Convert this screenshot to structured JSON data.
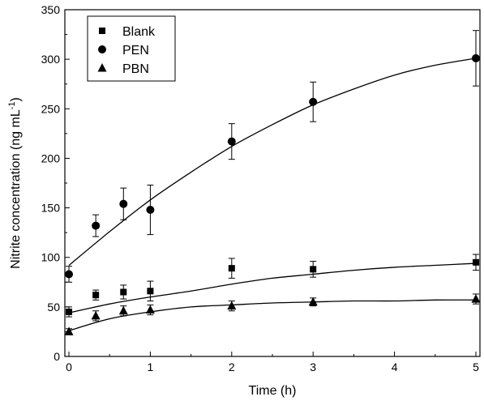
{
  "chart_data": {
    "type": "scatter",
    "title": "",
    "xlabel": "Time (h)",
    "ylabel_main": "Nitrite concentration (ng mL",
    "ylabel_sup": "-1",
    "ylabel_close": ")",
    "xlim": [
      -0.05,
      5.05
    ],
    "ylim": [
      0,
      350
    ],
    "xticks": [
      0,
      1,
      2,
      3,
      4,
      5
    ],
    "xtick_labels": [
      "0",
      "1",
      "2",
      "3",
      "4",
      "5"
    ],
    "yticks": [
      0,
      50,
      100,
      150,
      200,
      250,
      300,
      350
    ],
    "ytick_labels": [
      "0",
      "50",
      "100",
      "150",
      "200",
      "250",
      "300",
      "350"
    ],
    "grid": false,
    "legend_position": "top-left",
    "series": [
      {
        "name": "Blank",
        "marker": "square",
        "x": [
          0,
          0.33,
          0.67,
          1,
          2,
          3,
          5
        ],
        "y": [
          45,
          62,
          65,
          66,
          89,
          88,
          95
        ],
        "err": [
          5,
          5,
          7,
          10,
          10,
          8,
          8
        ],
        "fit": [
          44,
          53,
          60,
          66,
          73,
          79,
          83,
          87,
          90,
          92,
          94
        ]
      },
      {
        "name": "PEN",
        "marker": "circle",
        "x": [
          0,
          0.33,
          0.67,
          1,
          2,
          3,
          5
        ],
        "y": [
          83,
          132,
          154,
          148,
          217,
          257,
          301
        ],
        "err": [
          8,
          11,
          16,
          25,
          18,
          20,
          28
        ],
        "fit": [
          92,
          126,
          158,
          186,
          212,
          234,
          254,
          270,
          284,
          294,
          301
        ]
      },
      {
        "name": "PBN",
        "marker": "triangle",
        "x": [
          0,
          0.33,
          0.67,
          1,
          2,
          3,
          5
        ],
        "y": [
          25,
          41,
          46,
          47,
          51,
          55,
          58
        ],
        "err": [
          3,
          5,
          5,
          5,
          5,
          4,
          5
        ],
        "fit": [
          26,
          38,
          45,
          50,
          52,
          54,
          55,
          56,
          56,
          57,
          57
        ]
      }
    ],
    "fit_x": [
      0,
      0.5,
      1,
      1.5,
      2,
      2.5,
      3,
      3.5,
      4,
      4.5,
      5
    ]
  }
}
